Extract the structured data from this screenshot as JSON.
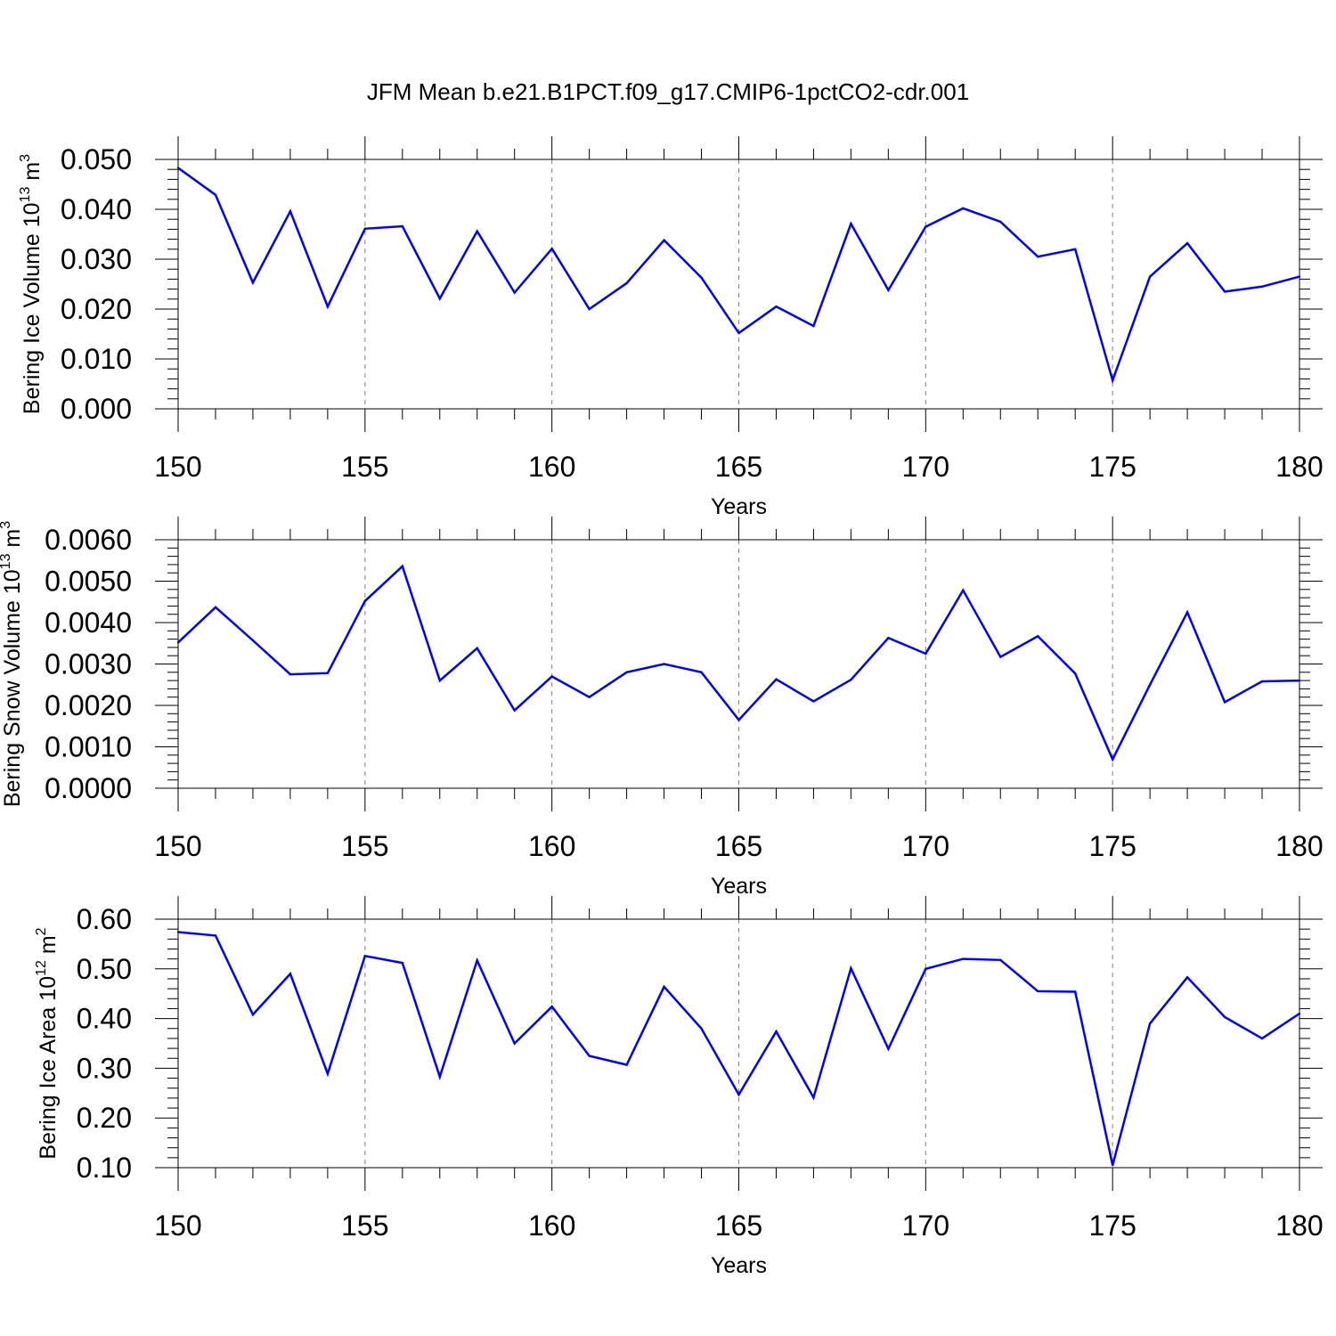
{
  "title": "JFM Mean b.e21.B1PCT.f09_g17.CMIP6-1pctCO2-cdr.001",
  "colors": {
    "line": "#0000ff",
    "axis": "#000000",
    "grid": "#808080"
  },
  "chart_data": [
    {
      "type": "line",
      "ylabel": "Bering Ice Volume 10",
      "ylabel_exp": "13",
      "ylabel_unit": " m",
      "ylabel_unit_exp": "3",
      "xlabel": "Years",
      "xlim": [
        150,
        180
      ],
      "ylim": [
        0,
        0.05
      ],
      "xticks": [
        150,
        155,
        160,
        165,
        170,
        175,
        180
      ],
      "yticks": [
        "0.000",
        "0.010",
        "0.020",
        "0.030",
        "0.040",
        "0.050"
      ],
      "x": [
        150,
        151,
        152,
        153,
        154,
        155,
        156,
        157,
        158,
        159,
        160,
        161,
        162,
        163,
        164,
        165,
        166,
        167,
        168,
        169,
        170,
        171,
        172,
        173,
        174,
        175,
        176,
        177,
        178,
        179,
        180
      ],
      "values": [
        0.0483,
        0.0429,
        0.0253,
        0.0396,
        0.0205,
        0.0361,
        0.0366,
        0.0221,
        0.0356,
        0.0233,
        0.0321,
        0.02,
        0.0252,
        0.0338,
        0.0263,
        0.0152,
        0.0205,
        0.0166,
        0.0371,
        0.0238,
        0.0365,
        0.0402,
        0.0375,
        0.0305,
        0.032,
        0.0057,
        0.0265,
        0.0332,
        0.0235,
        0.0245,
        0.0265
      ]
    },
    {
      "type": "line",
      "ylabel": "Bering Snow Volume 10",
      "ylabel_exp": "13",
      "ylabel_unit": " m",
      "ylabel_unit_exp": "3",
      "xlabel": "Years",
      "xlim": [
        150,
        180
      ],
      "ylim": [
        0,
        0.006
      ],
      "xticks": [
        150,
        155,
        160,
        165,
        170,
        175,
        180
      ],
      "yticks": [
        "0.0000",
        "0.0010",
        "0.0020",
        "0.0030",
        "0.0040",
        "0.0050",
        "0.0060"
      ],
      "x": [
        150,
        151,
        152,
        153,
        154,
        155,
        156,
        157,
        158,
        159,
        160,
        161,
        162,
        163,
        164,
        165,
        166,
        167,
        168,
        169,
        170,
        171,
        172,
        173,
        174,
        175,
        176,
        177,
        178,
        179,
        180
      ],
      "values": [
        0.00352,
        0.00437,
        0.00357,
        0.00275,
        0.00278,
        0.00452,
        0.00536,
        0.0026,
        0.00338,
        0.00188,
        0.0027,
        0.0022,
        0.0028,
        0.003,
        0.0028,
        0.00165,
        0.00263,
        0.0021,
        0.00262,
        0.00363,
        0.00325,
        0.00478,
        0.00317,
        0.00367,
        0.00277,
        0.0007,
        0.0025,
        0.00425,
        0.00208,
        0.00258,
        0.0026
      ]
    },
    {
      "type": "line",
      "ylabel": "Bering Ice Area 10",
      "ylabel_exp": "12",
      "ylabel_unit": " m",
      "ylabel_unit_exp": "2",
      "xlabel": "Years",
      "xlim": [
        150,
        180
      ],
      "ylim": [
        0.1,
        0.6
      ],
      "xticks": [
        150,
        155,
        160,
        165,
        170,
        175,
        180
      ],
      "yticks": [
        "0.10",
        "0.20",
        "0.30",
        "0.40",
        "0.50",
        "0.60"
      ],
      "x": [
        150,
        151,
        152,
        153,
        154,
        155,
        156,
        157,
        158,
        159,
        160,
        161,
        162,
        163,
        164,
        165,
        166,
        167,
        168,
        169,
        170,
        171,
        172,
        173,
        174,
        175,
        176,
        177,
        178,
        179,
        180
      ],
      "values": [
        0.574,
        0.567,
        0.408,
        0.49,
        0.289,
        0.526,
        0.512,
        0.283,
        0.517,
        0.35,
        0.424,
        0.325,
        0.307,
        0.464,
        0.38,
        0.247,
        0.374,
        0.241,
        0.501,
        0.339,
        0.5,
        0.52,
        0.518,
        0.455,
        0.454,
        0.105,
        0.39,
        0.483,
        0.403,
        0.36,
        0.41
      ]
    }
  ]
}
